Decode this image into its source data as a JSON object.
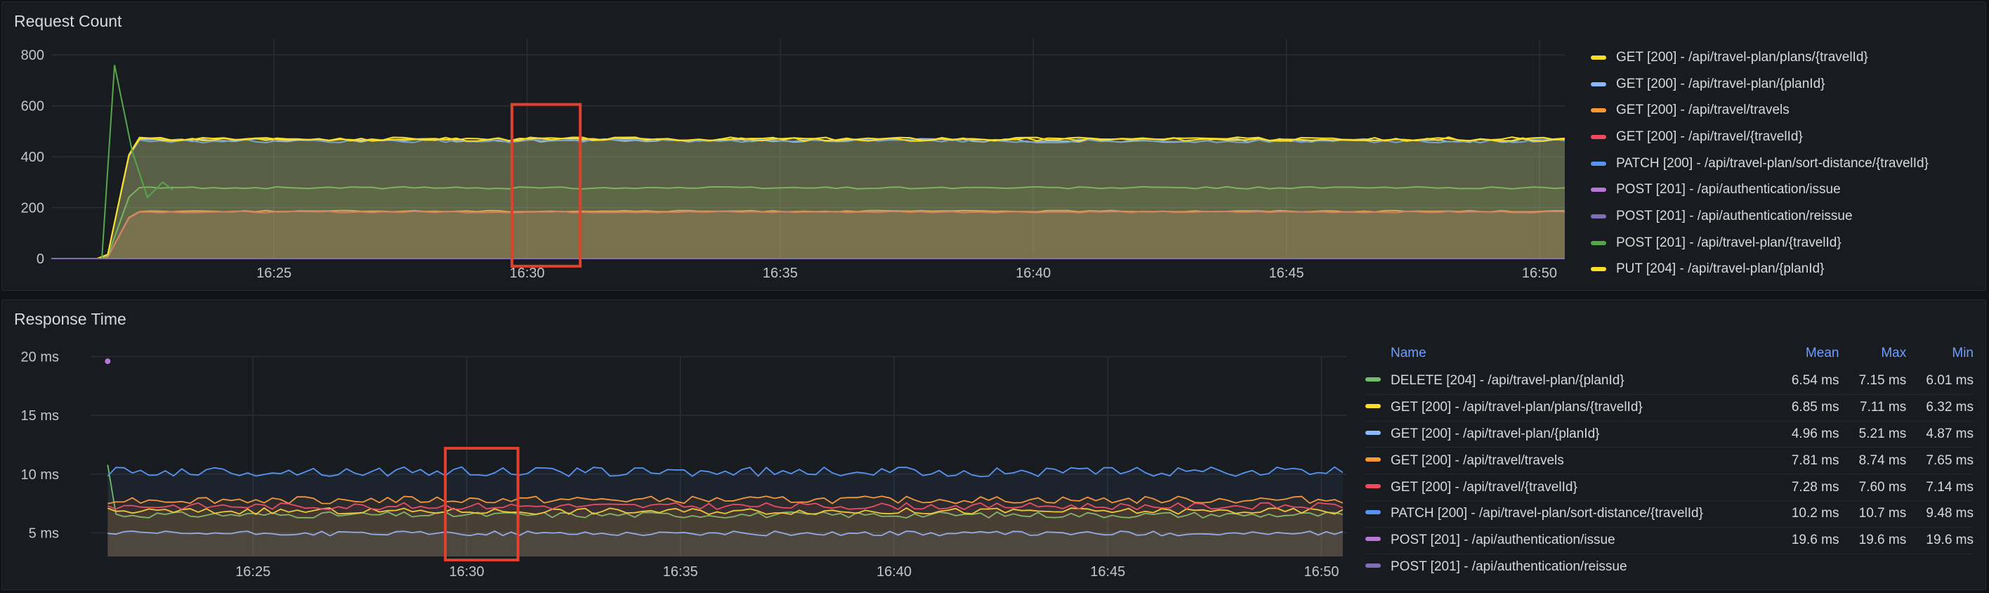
{
  "request_panel": {
    "title": "Request Count",
    "chart_data": {
      "type": "area",
      "y_ticks": [
        "0",
        "200",
        "400",
        "600",
        "800"
      ],
      "ylim": [
        0,
        850
      ],
      "x_ticks": [
        "16:25",
        "16:30",
        "16:35",
        "16:40",
        "16:45",
        "16:50"
      ],
      "x_tick_minutes": [
        25,
        30,
        35,
        40,
        45,
        50
      ],
      "xlim_minutes": [
        20.6,
        50.5
      ],
      "series": [
        {
          "name": "GET [200] - /api/travel-plan/plans/{travelId}",
          "color": "#fade2a",
          "level": 468
        },
        {
          "name": "GET [200] - /api/travel-plan/{planId}",
          "color": "#8ab8ff",
          "level": 464
        },
        {
          "name": "GET [200] - /api/travel/travels",
          "color": "#ff9830",
          "level": 186
        },
        {
          "name": "GET [200] - /api/travel/{travelId}",
          "color": "#f2495c",
          "level": 183
        },
        {
          "name": "PATCH [200] - /api/travel-plan/sort-distance/{travelId}",
          "color": "#5794f2",
          "level": 462
        },
        {
          "name": "POST [201] - /api/authentication/issue",
          "color": "#b877d9",
          "level": 0
        },
        {
          "name": "POST [201] - /api/authentication/reissue",
          "color": "#806eb7",
          "level": 0
        },
        {
          "name": "POST [201] - /api/travel-plan/{travelId}",
          "color": "#56a64b",
          "level": 278
        },
        {
          "name": "PUT [204] - /api/travel-plan/{planId}",
          "color": "#fade2a",
          "level": 470
        }
      ]
    },
    "highlight": {
      "color": "#e0412c"
    }
  },
  "response_panel": {
    "title": "Response Time",
    "chart_data": {
      "type": "area",
      "y_ticks": [
        "5 ms",
        "10 ms",
        "15 ms",
        "20 ms"
      ],
      "y_tick_values": [
        5,
        10,
        15,
        20
      ],
      "ylim": [
        3,
        22
      ],
      "x_ticks": [
        "16:25",
        "16:30",
        "16:35",
        "16:40",
        "16:45",
        "16:50"
      ],
      "x_tick_minutes": [
        25,
        30,
        35,
        40,
        45,
        50
      ],
      "xlim_minutes": [
        21.2,
        50.6
      ],
      "series": [
        {
          "name": "DELETE [204] - /api/travel-plan/{planId}",
          "color": "#73bf69",
          "mean": "6.54 ms",
          "max": "7.15 ms",
          "min": "6.01 ms",
          "level": 6.54
        },
        {
          "name": "GET [200] - /api/travel-plan/plans/{travelId}",
          "color": "#fade2a",
          "mean": "6.85 ms",
          "max": "7.11 ms",
          "min": "6.32 ms",
          "level": 6.85
        },
        {
          "name": "GET [200] - /api/travel-plan/{planId}",
          "color": "#8ab8ff",
          "mean": "4.96 ms",
          "max": "5.21 ms",
          "min": "4.87 ms",
          "level": 4.96
        },
        {
          "name": "GET [200] - /api/travel/travels",
          "color": "#ff9830",
          "mean": "7.81 ms",
          "max": "8.74 ms",
          "min": "7.65 ms",
          "level": 7.81
        },
        {
          "name": "GET [200] - /api/travel/{travelId}",
          "color": "#f2495c",
          "mean": "7.28 ms",
          "max": "7.60 ms",
          "min": "7.14 ms",
          "level": 7.28
        },
        {
          "name": "PATCH [200] - /api/travel-plan/sort-distance/{travelId}",
          "color": "#5794f2",
          "mean": "10.2 ms",
          "max": "10.7 ms",
          "min": "9.48 ms",
          "level": 10.2
        },
        {
          "name": "POST [201] - /api/authentication/issue",
          "color": "#b877d9",
          "mean": "19.6 ms",
          "max": "19.6 ms",
          "min": "19.6 ms",
          "level": 19.6
        },
        {
          "name": "POST [201] - /api/authentication/reissue",
          "color": "#806eb7",
          "mean": "",
          "max": "",
          "min": "",
          "level": 0
        }
      ],
      "table_headers": {
        "name": "Name",
        "mean": "Mean",
        "max": "Max",
        "min": "Min"
      }
    },
    "highlight": {
      "color": "#e0412c"
    }
  }
}
